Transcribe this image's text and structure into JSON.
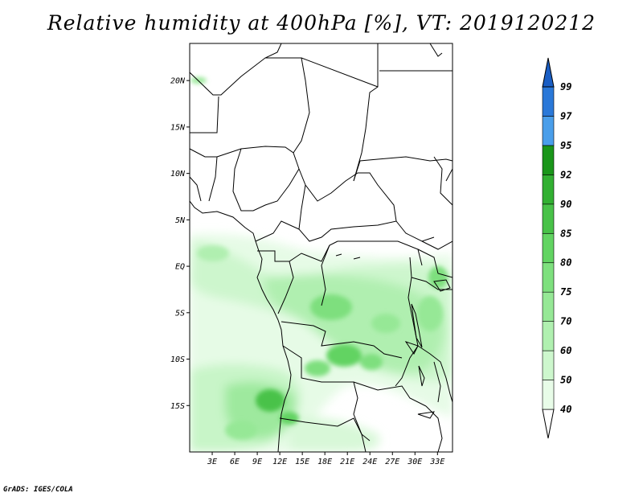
{
  "title": "Relative humidity at 400hPa [%], VT: 2019120212",
  "credit": "GrADS: IGES/COLA",
  "map": {
    "lat_labels": [
      "20N",
      "15N",
      "10N",
      "5N",
      "EQ",
      "5S",
      "10S",
      "15S"
    ],
    "lon_labels": [
      "3E",
      "6E",
      "9E",
      "12E",
      "15E",
      "18E",
      "21E",
      "24E",
      "27E",
      "30E",
      "33E"
    ],
    "lon_range": [
      0,
      35
    ],
    "lat_range": [
      -20,
      24
    ]
  },
  "colorbar": {
    "labels": [
      "40",
      "50",
      "60",
      "70",
      "75",
      "80",
      "85",
      "90",
      "92",
      "95",
      "97",
      "99"
    ],
    "colors": [
      "#ffffff",
      "#e8fce8",
      "#cdf7cd",
      "#b0f0b0",
      "#96e896",
      "#7ee07e",
      "#62d462",
      "#48c248",
      "#32b032",
      "#1a961a",
      "#4a9eea",
      "#2a78d8",
      "#1a5ec4"
    ]
  }
}
